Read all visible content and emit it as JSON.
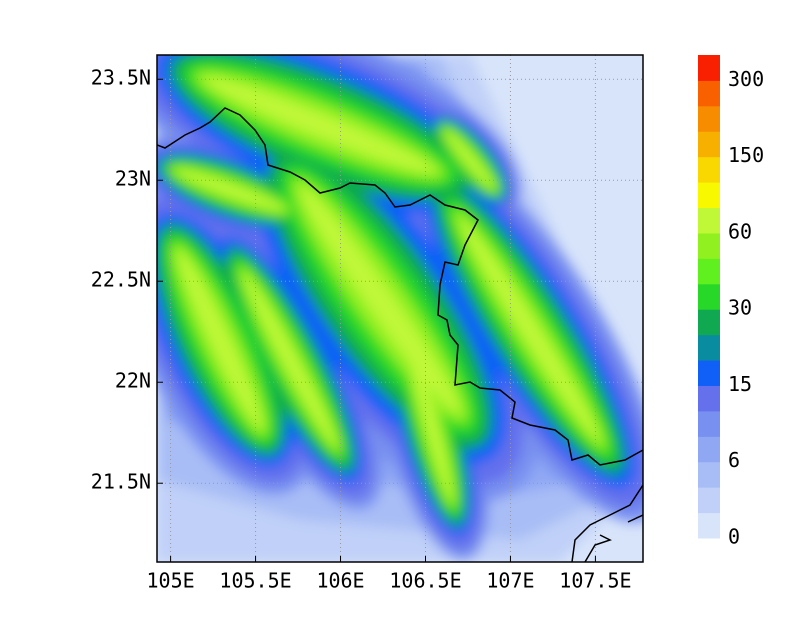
{
  "chart_data": {
    "type": "filled-contour-map",
    "xlim": [
      104.92,
      107.78
    ],
    "ylim": [
      21.11,
      23.62
    ],
    "xticks": [
      {
        "value": 105,
        "label": "105E"
      },
      {
        "value": 105.5,
        "label": "105.5E"
      },
      {
        "value": 106,
        "label": "106E"
      },
      {
        "value": 106.5,
        "label": "106.5E"
      },
      {
        "value": 107,
        "label": "107E"
      },
      {
        "value": 107.5,
        "label": "107.5E"
      }
    ],
    "yticks": [
      {
        "value": 21.5,
        "label": "21.5N"
      },
      {
        "value": 22,
        "label": "22N"
      },
      {
        "value": 22.5,
        "label": "22.5N"
      },
      {
        "value": 23,
        "label": "23N"
      },
      {
        "value": 23.5,
        "label": "23.5N"
      }
    ],
    "grid": true,
    "colorbar": {
      "colors": [
        "#d8e4fa",
        "#c0d0f8",
        "#a8bdf6",
        "#90a8f4",
        "#7890f0",
        "#6470ec",
        "#1060f8",
        "#0a8ca0",
        "#10a850",
        "#28d828",
        "#60f020",
        "#90f020",
        "#c0f838",
        "#f8f800",
        "#f8d800",
        "#f8b000",
        "#f88c00",
        "#f86000",
        "#f82000"
      ],
      "labels": [
        0,
        6,
        15,
        30,
        60,
        150,
        300
      ]
    }
  }
}
